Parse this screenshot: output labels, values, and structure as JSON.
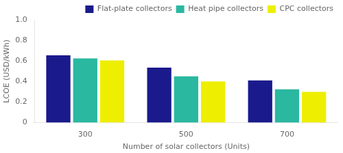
{
  "chart_data": {
    "type": "bar",
    "categories": [
      "300",
      "500",
      "700"
    ],
    "series": [
      {
        "name": "Flat-plate collectors",
        "color": "#1a1a8c",
        "values": [
          0.655,
          0.535,
          0.41
        ]
      },
      {
        "name": "Heat pipe collectors",
        "color": "#2ab8a0",
        "values": [
          0.625,
          0.45,
          0.325
        ]
      },
      {
        "name": "CPC collectors",
        "color": "#eeee00",
        "values": [
          0.605,
          0.4,
          0.3
        ]
      }
    ],
    "xlabel": "Number of solar collectors (Units)",
    "ylabel": "LCOE (USD/kWh)",
    "ylim": [
      0,
      1.0
    ],
    "yticks": [
      0,
      0.2,
      0.4,
      0.6,
      0.8,
      {
        "value": 1.0,
        "label": "1.0"
      }
    ],
    "grid": false,
    "legend": "upper right"
  }
}
